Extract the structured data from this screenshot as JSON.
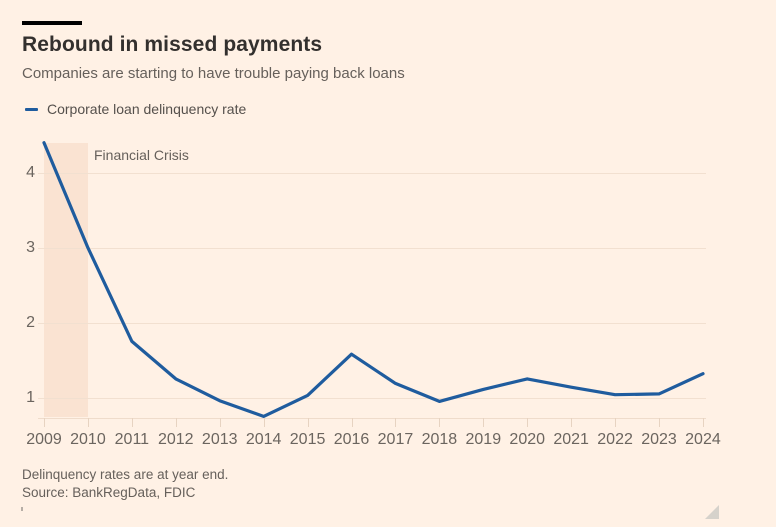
{
  "header": {
    "title": "Rebound in missed payments",
    "subtitle": "Companies are starting to have trouble paying back loans"
  },
  "legend": {
    "label": "Corporate loan delinquency rate"
  },
  "chart_data": {
    "type": "line",
    "title": "Rebound in missed payments",
    "subtitle": "Companies are starting to have trouble paying back loans",
    "xlabel": "",
    "ylabel": "",
    "x": [
      2009,
      2010,
      2011,
      2012,
      2013,
      2014,
      2015,
      2016,
      2017,
      2018,
      2019,
      2020,
      2021,
      2022,
      2023,
      2024
    ],
    "series": [
      {
        "name": "Corporate loan delinquency rate",
        "values": [
          4.4,
          3.0,
          1.75,
          1.25,
          0.96,
          0.75,
          1.03,
          1.58,
          1.19,
          0.95,
          1.11,
          1.25,
          1.14,
          1.04,
          1.05,
          1.32
        ]
      }
    ],
    "y_ticks": [
      1,
      2,
      3,
      4
    ],
    "ylim": [
      0.73,
      4.45
    ],
    "grid": "horizontal",
    "legend_position": "top-left",
    "annotation": {
      "label": "Financial Crisis",
      "x_span": [
        2009,
        2010
      ]
    },
    "colors": {
      "line": "#1F5C9E",
      "band": "#FAE3D2",
      "background": "#FFF1E5",
      "gridline": "#F2E0D0"
    }
  },
  "footer": {
    "note": "Delinquency rates are at year end.",
    "source": "Source: BankRegData, FDIC"
  }
}
